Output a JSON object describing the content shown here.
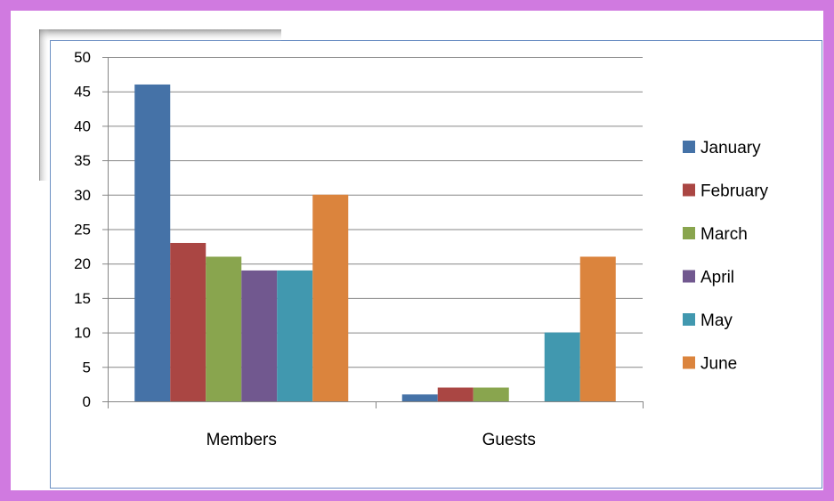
{
  "chart_data": {
    "type": "bar",
    "categories": [
      "Members",
      "Guests"
    ],
    "series": [
      {
        "name": "January",
        "color": "#4572a7",
        "values": [
          46,
          1
        ]
      },
      {
        "name": "February",
        "color": "#aa4643",
        "values": [
          23,
          2
        ]
      },
      {
        "name": "March",
        "color": "#89a54e",
        "values": [
          21,
          2
        ]
      },
      {
        "name": "April",
        "color": "#71588f",
        "values": [
          19,
          0
        ]
      },
      {
        "name": "May",
        "color": "#4198af",
        "values": [
          19,
          10
        ]
      },
      {
        "name": "June",
        "color": "#db843d",
        "values": [
          30,
          21
        ]
      }
    ],
    "yticks": [
      "0",
      "5",
      "10",
      "15",
      "20",
      "25",
      "30",
      "35",
      "40",
      "45",
      "50"
    ],
    "ylim": [
      0,
      50
    ],
    "grid": true,
    "legend_position": "right",
    "gridline_color": "#868686"
  }
}
